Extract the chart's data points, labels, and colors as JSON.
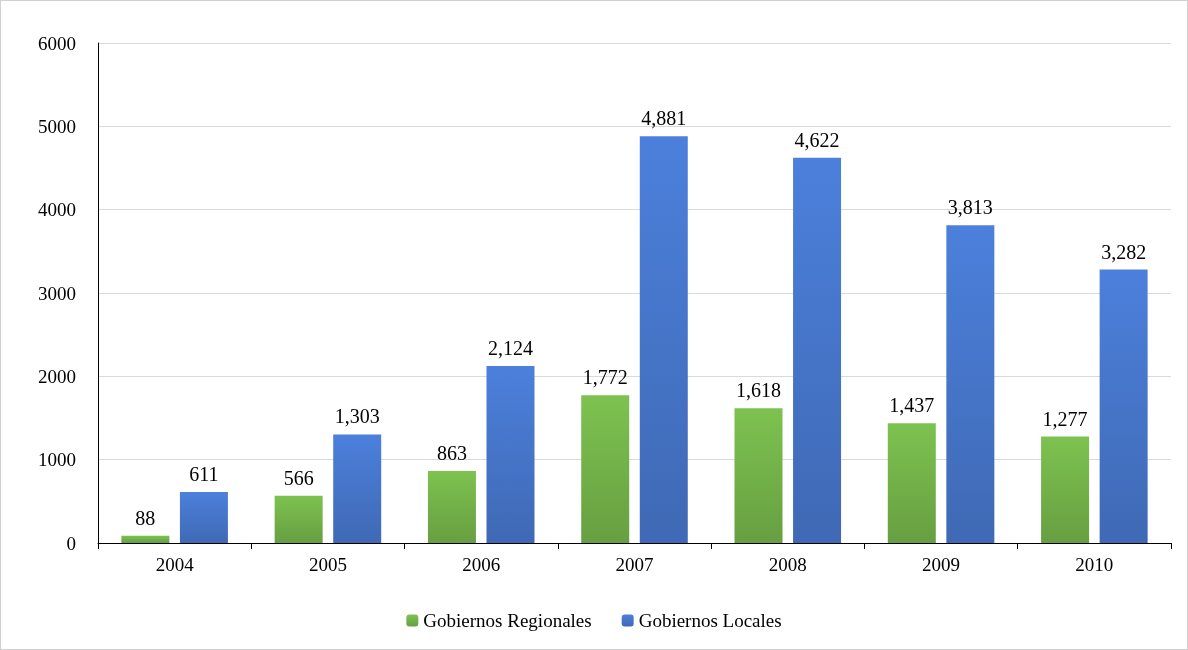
{
  "chart_data": {
    "type": "bar",
    "categories": [
      "2004",
      "2005",
      "2006",
      "2007",
      "2008",
      "2009",
      "2010"
    ],
    "series": [
      {
        "name": "Gobiernos Regionales",
        "color": "#70ad47",
        "values": [
          88,
          566,
          863,
          1772,
          1618,
          1437,
          1277
        ],
        "value_labels": [
          "88",
          "566",
          "863",
          "1,772",
          "1,618",
          "1,437",
          "1,277"
        ]
      },
      {
        "name": "Gobiernos Locales",
        "color": "#4472c4",
        "values": [
          611,
          1303,
          2124,
          4881,
          4622,
          3813,
          3282
        ],
        "value_labels": [
          "611",
          "1,303",
          "2,124",
          "4,881",
          "4,622",
          "3,813",
          "3,282"
        ]
      }
    ],
    "ylim": [
      0,
      6000
    ],
    "yticks": [
      0,
      1000,
      2000,
      3000,
      4000,
      5000,
      6000
    ],
    "grid": "y",
    "legend": "bottom"
  }
}
